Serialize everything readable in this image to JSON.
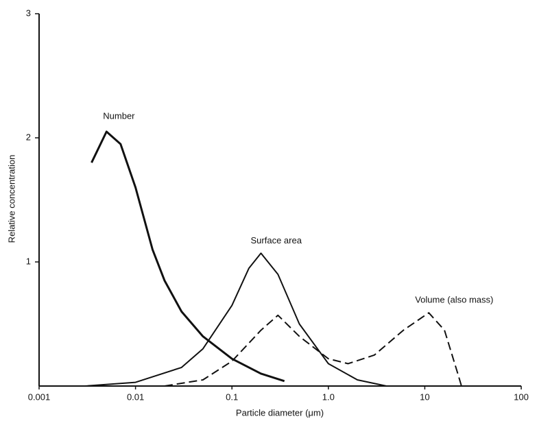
{
  "chart_data": {
    "type": "line",
    "x_label": "Particle diameter (μm)",
    "y_label": "Relative concentration",
    "log_x": true,
    "xlim": [
      0.001,
      100
    ],
    "xticks": [
      0.001,
      0.01,
      0.1,
      {
        "value": 1,
        "label": "1.0"
      },
      10,
      100
    ],
    "ylim": [
      0,
      3
    ],
    "yticks": [
      1,
      2,
      3
    ],
    "series": [
      {
        "name": "Number",
        "color": "#111111",
        "style": "solid",
        "width": 3,
        "x": [
          0.0035,
          0.005,
          0.007,
          0.01,
          0.015,
          0.02,
          0.03,
          0.05,
          0.1,
          0.2,
          0.35
        ],
        "values": [
          1.8,
          2.05,
          1.95,
          1.6,
          1.1,
          0.85,
          0.6,
          0.4,
          0.22,
          0.1,
          0.04
        ]
      },
      {
        "name": "Surface area",
        "color": "#111111",
        "style": "solid",
        "width": 2,
        "x": [
          0.003,
          0.01,
          0.03,
          0.05,
          0.1,
          0.15,
          0.2,
          0.3,
          0.5,
          1,
          2,
          4
        ],
        "values": [
          0,
          0.03,
          0.15,
          0.3,
          0.65,
          0.95,
          1.07,
          0.9,
          0.5,
          0.18,
          0.05,
          0
        ]
      },
      {
        "name": "Volume (also mass)",
        "color": "#111111",
        "style": "dashed",
        "width": 2,
        "x": [
          0.02,
          0.05,
          0.1,
          0.2,
          0.3,
          0.5,
          1,
          1.6,
          3,
          6,
          11,
          16,
          22,
          24
        ],
        "values": [
          0,
          0.05,
          0.2,
          0.45,
          0.57,
          0.4,
          0.22,
          0.18,
          0.25,
          0.45,
          0.59,
          0.45,
          0.1,
          0
        ]
      }
    ]
  }
}
